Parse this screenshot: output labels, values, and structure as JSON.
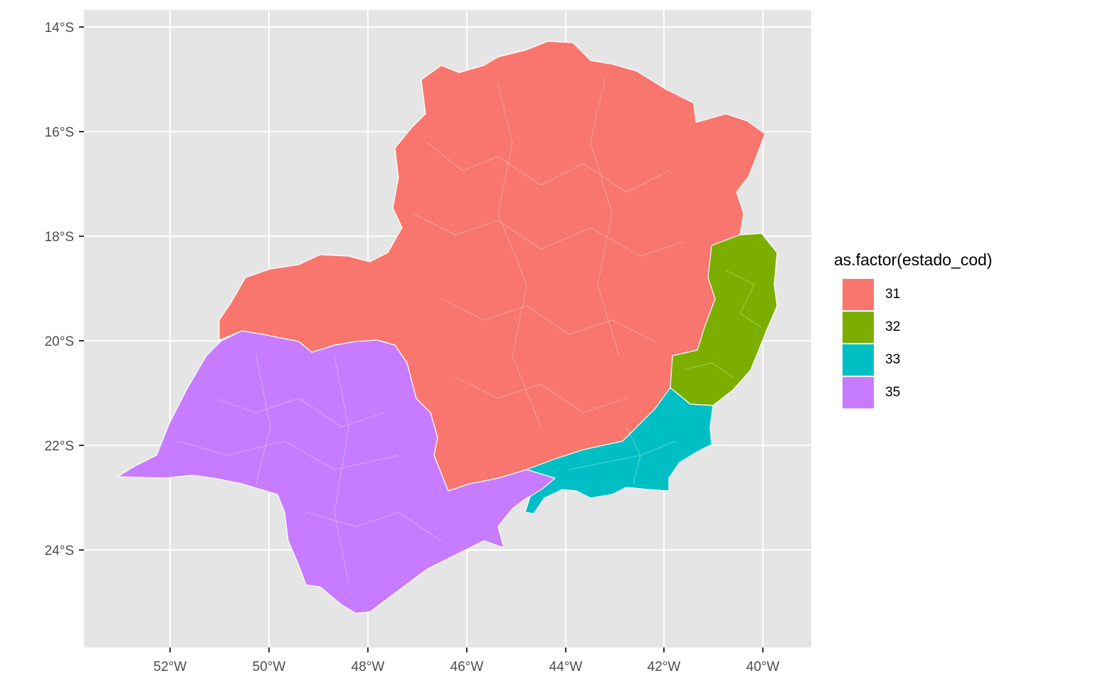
{
  "map": {
    "y_axis_labels": [
      "14°S",
      "16°S",
      "18°S",
      "20°S",
      "22°S",
      "24°S"
    ],
    "x_axis_labels": [
      "52°W",
      "50°W",
      "48°W",
      "46°W",
      "44°W",
      "42°W",
      "40°W"
    ],
    "panel_background": "#e5e5e5",
    "grid_color": "#ffffff",
    "border_color": "#ffffff"
  },
  "legend": {
    "title": "as.factor(estado_cod)",
    "items": [
      {
        "label": "31",
        "color": "#f8766d"
      },
      {
        "label": "32",
        "color": "#7cae00"
      },
      {
        "label": "33",
        "color": "#00bfc4"
      },
      {
        "label": "35",
        "color": "#c77cff"
      }
    ]
  }
}
